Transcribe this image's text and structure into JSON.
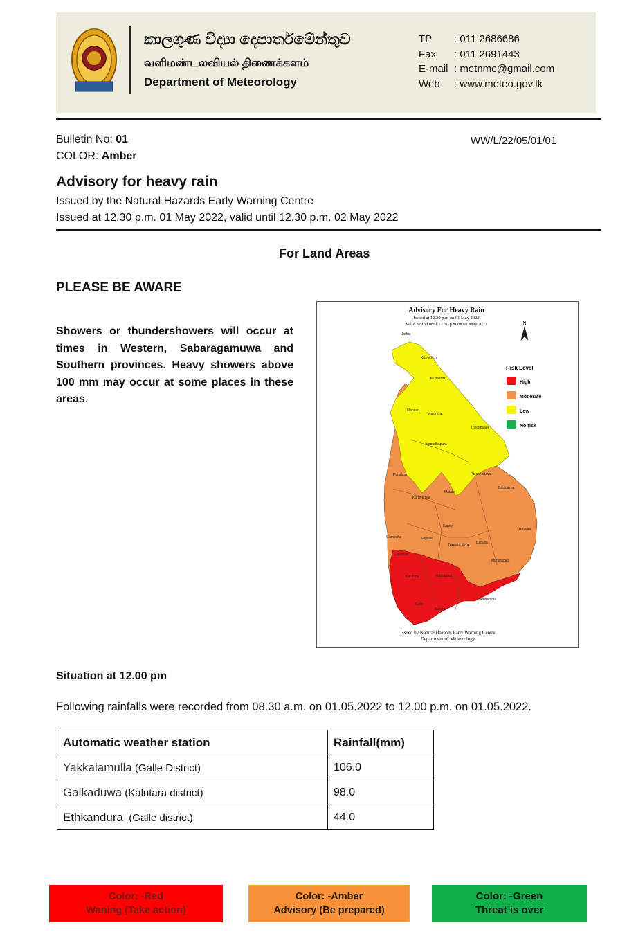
{
  "header": {
    "title_sinhala": "කාලගුණ විද්‍යා දෙපාර්තමේන්තුව",
    "title_tamil": "வளிமண்டலவியல் திணைக்களம்",
    "title_english": "Department of Meteorology",
    "contacts": [
      {
        "label": "TP",
        "value": ": 011 2686686"
      },
      {
        "label": "Fax",
        "value": ": 011 2691443"
      },
      {
        "label": "E-mail",
        "value": ": metnmc@gmail.com"
      },
      {
        "label": "Web",
        "value": ": www.meteo.gov.lk"
      }
    ]
  },
  "bulletin": {
    "no_label": "Bulletin No: ",
    "no_value": "01",
    "color_label": "COLOR: ",
    "color_value": "Amber",
    "ref": "WW/L/22/05/01/01"
  },
  "advisory": {
    "title": "Advisory for heavy rain",
    "issued_by": "Issued by the Natural Hazards Early Warning Centre",
    "issued_at": "Issued at 12.30 p.m.  01 May 2022, valid until 12.30 p.m. 02 May 2022"
  },
  "section_title": "For Land Areas",
  "aware_title": "PLEASE BE AWARE",
  "aware_text_bold": "Showers or thundershowers will occur at times in Western, Sabaragamuwa and Southern provinces. Heavy showers above 100 mm may occur at some places in these areas",
  "aware_text_end": ".",
  "map": {
    "title": "Advisory For Heavy Rain",
    "issued": "Issued at 12.30 p.m on 01 May 2022",
    "valid": "Valid period until 12.30 p.m on 02 May 2022",
    "north": "N",
    "legend_title": "Risk Level",
    "legend": [
      {
        "label": "High",
        "color": "#e8141a"
      },
      {
        "label": "Moderate",
        "color": "#f0914a"
      },
      {
        "label": "Low",
        "color": "#f5f50a"
      },
      {
        "label": "No risk",
        "color": "#1aac4e"
      }
    ],
    "footer1": "Issued by Natural Hazards Early Warning Centre",
    "footer2": "Department of Meteorology",
    "districts": [
      "Jaffna",
      "Kilinochchi",
      "Mullaitivu",
      "Mannar",
      "Vavuniya",
      "Trincomalee",
      "Anuradhapura",
      "Puttalam",
      "Polonnaruwa",
      "Matale",
      "Kurunegala",
      "Batticaloa",
      "Kandy",
      "Ampara",
      "Gampaha",
      "Kegalle",
      "Nuwara Eliya",
      "Badulla",
      "Colombo",
      "Monaragala",
      "Kalutara",
      "Ratnapura",
      "Hambantota",
      "Galle",
      "Matara"
    ]
  },
  "situation_title": "Situation at 12.00 pm",
  "situation_text": "Following rainfalls were recorded from 08.30 a.m. on 01.05.2022 to 12.00 p.m. on 01.05.2022.",
  "table": {
    "headers": [
      "Automatic weather station",
      "Rainfall(mm)"
    ],
    "rows": [
      {
        "station": "Yakkalamulla",
        "district": " (Galle District)",
        "rainfall": "106.0"
      },
      {
        "station": "Galkaduwa",
        "district": " (Kalutara district)",
        "rainfall": "98.0"
      },
      {
        "station": "Ethkandura",
        "district": "  (Galle district)",
        "rainfall": "44.0"
      }
    ]
  },
  "color_legend": [
    {
      "line1": "Color: -Red",
      "line2": "Waning (Take action)",
      "bg": "#ff0000",
      "fg": "#7a1a1a"
    },
    {
      "line1": "Color: -Amber",
      "line2": "Advisory (Be prepared)",
      "bg": "#f7923a",
      "fg": "#2a1a0a"
    },
    {
      "line1": "Color: -Green",
      "line2": "Threat is over",
      "bg": "#12b04b",
      "fg": "#0b1a0f"
    }
  ]
}
